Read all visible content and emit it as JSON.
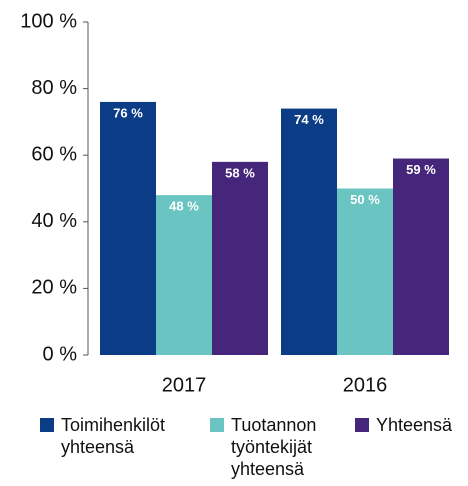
{
  "chart_data": {
    "type": "bar",
    "categories": [
      "2017",
      "2016"
    ],
    "series": [
      {
        "name": "Toimihenkilöt yhteensä",
        "color": "#0b3d87",
        "values": [
          76,
          74
        ],
        "value_labels": [
          "76 %",
          "74 %"
        ]
      },
      {
        "name": "Tuotannon työntekijät yhteensä",
        "color": "#6ac4c1",
        "values": [
          48,
          50
        ],
        "value_labels": [
          "48 %",
          "50 %"
        ]
      },
      {
        "name": "Yhteensä",
        "color": "#45267a",
        "values": [
          58,
          59
        ],
        "value_labels": [
          "58 %",
          "59 %"
        ]
      }
    ],
    "ylim": [
      0,
      100
    ],
    "yticks": [
      {
        "value": 0,
        "label": "0 %"
      },
      {
        "value": 20,
        "label": "20 %"
      },
      {
        "value": 40,
        "label": "40 %"
      },
      {
        "value": 60,
        "label": "60 %"
      },
      {
        "value": 80,
        "label": "80 %"
      },
      {
        "value": 100,
        "label": "100 %"
      }
    ],
    "legend": "bottom"
  }
}
